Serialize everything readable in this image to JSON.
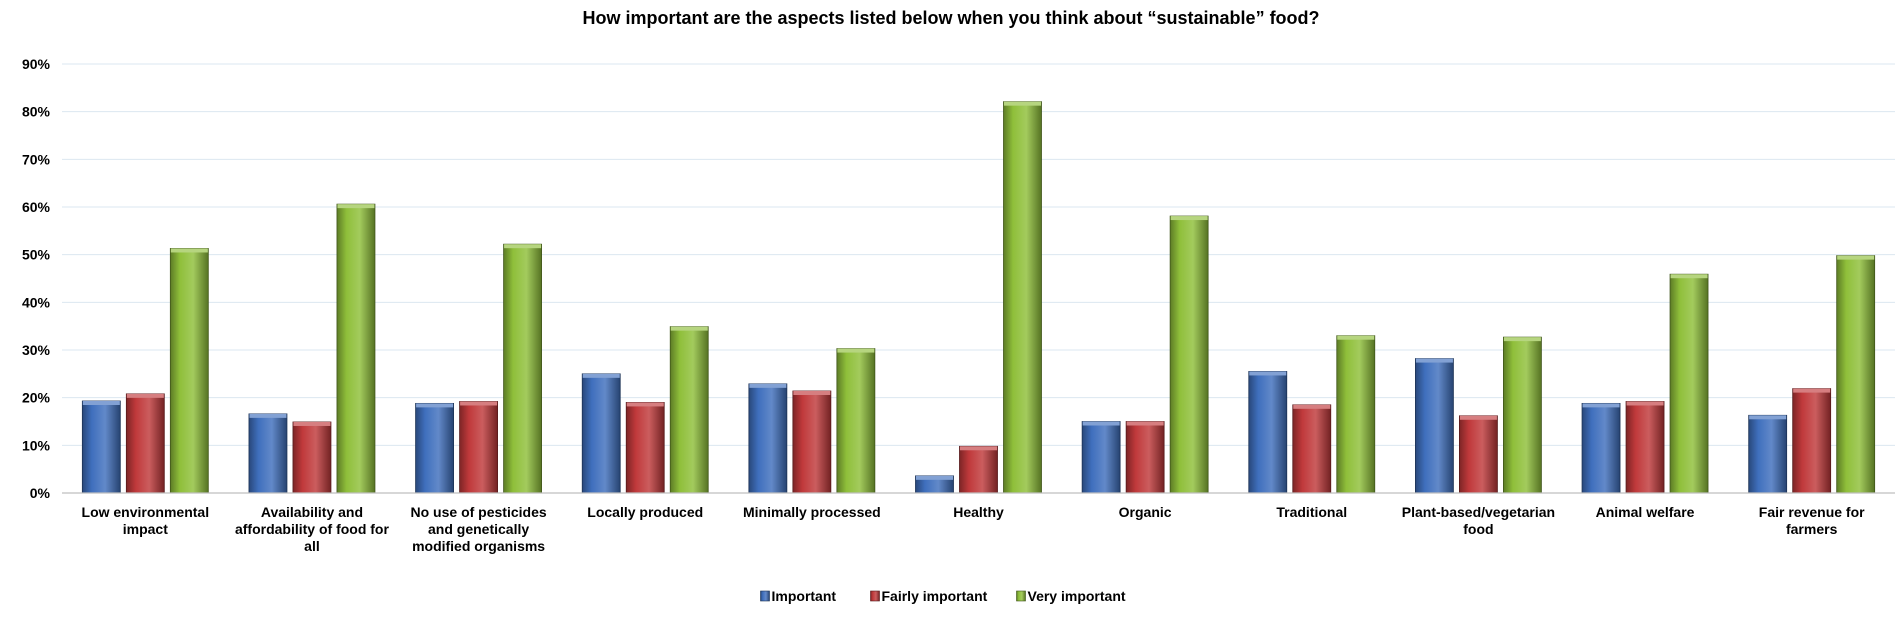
{
  "chart_data": {
    "type": "bar",
    "title": "How important are the aspects listed below when you think about “sustainable” food?",
    "xlabel": "",
    "ylabel": "",
    "ylim": [
      0,
      90
    ],
    "yticks": [
      "0%",
      "10%",
      "20%",
      "30%",
      "40%",
      "50%",
      "60%",
      "70%",
      "80%",
      "90%"
    ],
    "ytick_values": [
      0,
      10,
      20,
      30,
      40,
      50,
      60,
      70,
      80,
      90
    ],
    "grid": true,
    "legend_position": "bottom",
    "categories": [
      [
        "Low environmental",
        "impact"
      ],
      [
        "Availability and",
        "affordability of food for",
        "all"
      ],
      [
        "No use of pesticides",
        "and genetically",
        "modified organisms"
      ],
      [
        "Locally produced"
      ],
      [
        "Minimally processed"
      ],
      [
        "Healthy"
      ],
      [
        "Organic"
      ],
      [
        "Traditional"
      ],
      [
        "Plant-based/vegetarian",
        "food"
      ],
      [
        "Animal welfare"
      ],
      [
        "Fair revenue for",
        "farmers"
      ]
    ],
    "series": [
      {
        "name": "Important",
        "color": "#3f6fbd",
        "values": [
          19.3,
          16.6,
          18.8,
          25.0,
          22.9,
          3.6,
          15.0,
          25.5,
          28.2,
          18.8,
          16.3
        ]
      },
      {
        "name": "Fairly important",
        "color": "#c0393b",
        "values": [
          20.8,
          14.9,
          19.2,
          19.0,
          21.4,
          9.8,
          15.0,
          18.5,
          16.2,
          19.2,
          21.9
        ]
      },
      {
        "name": "Very important",
        "color": "#8fbf3a",
        "values": [
          51.3,
          60.6,
          52.2,
          34.9,
          30.3,
          82.1,
          58.1,
          33.0,
          32.7,
          45.9,
          49.8
        ]
      }
    ]
  }
}
